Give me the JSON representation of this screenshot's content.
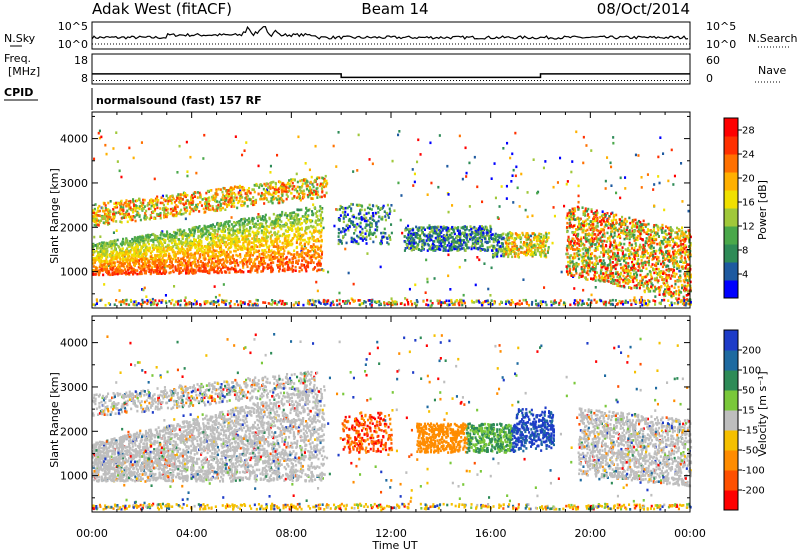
{
  "header": {
    "radar": "Adak West (fitACF)",
    "beam": "Beam 14",
    "date": "08/Oct/2014"
  },
  "labels": {
    "nsky": "N.Sky",
    "nsearch": "N.Search",
    "freq_line1": "Freq.",
    "freq_line2": "[MHz]",
    "nave": "Nave",
    "cpid": "CPID",
    "cpid_value": "normalsound (fast) 157 RF",
    "ylabel": "Slant Range [km]",
    "xlabel": "Time UT"
  },
  "chart_data": [
    {
      "type": "line",
      "name": "noise",
      "left_ticks": [
        "10^5",
        "10^0"
      ],
      "right_ticks": [
        "10^5",
        "10^0"
      ]
    },
    {
      "type": "line",
      "name": "frequency",
      "left_ticks": [
        "18",
        "8"
      ],
      "right_ticks": [
        "60",
        "0"
      ],
      "freq_steps": [
        {
          "from": 0,
          "to": 10,
          "value": 12.5
        },
        {
          "from": 10,
          "to": 18,
          "value": 10.6
        },
        {
          "from": 18,
          "to": 24,
          "value": 12.5
        }
      ],
      "nave_value": 10
    },
    {
      "type": "heatmap",
      "name": "power",
      "x_range": [
        0,
        24
      ],
      "y_range": [
        180,
        4600
      ],
      "x_ticks": [
        "00:00",
        "04:00",
        "08:00",
        "12:00",
        "16:00",
        "20:00",
        "00:00"
      ],
      "y_ticks": [
        "1000",
        "2000",
        "3000",
        "4000"
      ],
      "colorbar": {
        "label": "Power [dB]",
        "ticks": [
          "4",
          "8",
          "12",
          "16",
          "20",
          "24",
          "28"
        ],
        "colors": [
          "#0000ff",
          "#1e5aa0",
          "#2e8b57",
          "#4aa84a",
          "#a0c83a",
          "#f0e000",
          "#ffb000",
          "#ff7000",
          "#ff3000",
          "#ff0000"
        ],
        "range": [
          0,
          30
        ]
      }
    },
    {
      "type": "heatmap",
      "name": "velocity",
      "x_range": [
        0,
        24
      ],
      "y_range": [
        180,
        4600
      ],
      "x_ticks": [
        "00:00",
        "04:00",
        "08:00",
        "12:00",
        "16:00",
        "20:00",
        "00:00"
      ],
      "y_ticks": [
        "1000",
        "2000",
        "3000",
        "4000"
      ],
      "colorbar": {
        "label": "Velocity [m s⁻¹]",
        "ticks": [
          "200",
          "100",
          "50",
          "15",
          "-15",
          "-50",
          "-100",
          "-200"
        ],
        "colors": [
          "#1e3cc8",
          "#1e6aa0",
          "#2e8b57",
          "#7ac83a",
          "#bebebe",
          "#f5c000",
          "#ff8c00",
          "#ff5000",
          "#ff0000"
        ]
      }
    }
  ]
}
